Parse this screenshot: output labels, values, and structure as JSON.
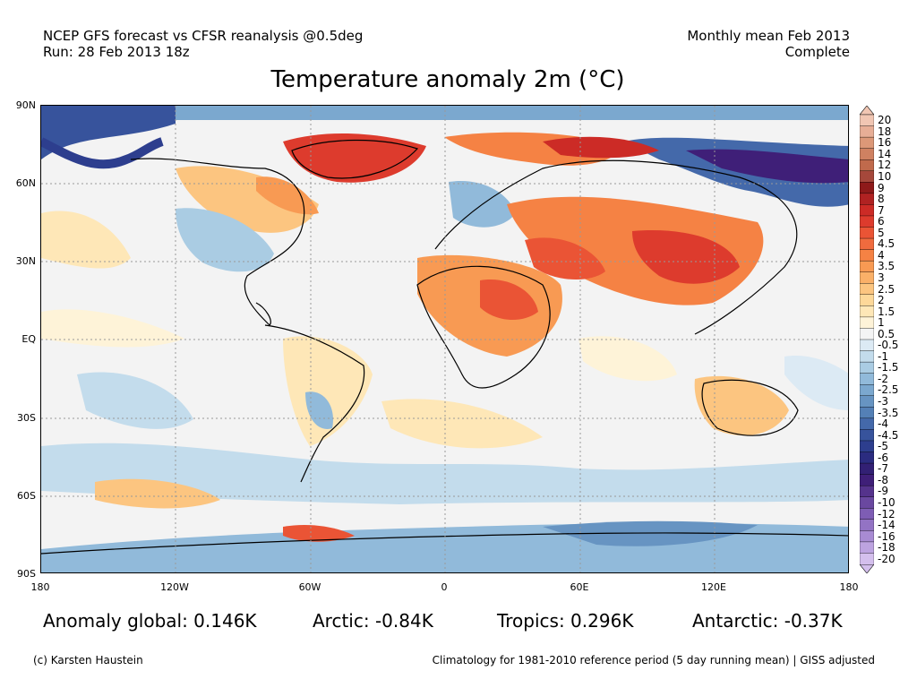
{
  "header": {
    "line1_left": "NCEP GFS forecast vs CFSR reanalysis @0.5deg",
    "line2_left": "Run: 28 Feb 2013 18z",
    "line1_right": "Monthly mean Feb 2013",
    "line2_right": "Complete"
  },
  "title": "Temperature anomaly 2m (°C)",
  "map": {
    "lat_labels": [
      "90N",
      "60N",
      "30N",
      "EQ",
      "30S",
      "60S",
      "90S"
    ],
    "lon_labels": [
      "180",
      "120W",
      "60W",
      "0",
      "60E",
      "120E",
      "180"
    ]
  },
  "colorbar": {
    "labels": [
      "20",
      "18",
      "16",
      "14",
      "12",
      "10",
      "9",
      "8",
      "7",
      "6",
      "5",
      "4.5",
      "4",
      "3.5",
      "3",
      "2.5",
      "2",
      "1.5",
      "1",
      "0.5",
      "-0.5",
      "-1",
      "-1.5",
      "-2",
      "-2.5",
      "-3",
      "-3.5",
      "-4",
      "-4.5",
      "-5",
      "-6",
      "-7",
      "-8",
      "-9",
      "-10",
      "-12",
      "-14",
      "-16",
      "-18",
      "-20"
    ],
    "colors": [
      "#f1c6b3",
      "#e7ae96",
      "#dc9878",
      "#cf8161",
      "#c06a4c",
      "#a5483b",
      "#8e1a1a",
      "#b02222",
      "#cc2b26",
      "#dd3b2d",
      "#ea5435",
      "#f06b3e",
      "#f58244",
      "#f89a53",
      "#fab068",
      "#fcc580",
      "#fdd899",
      "#fee7b7",
      "#fef3d8",
      "#f4f4f4",
      "#dceaf4",
      "#c3dcec",
      "#aaccE3",
      "#91bada",
      "#7ba8cf",
      "#6794c2",
      "#5480b6",
      "#4469aa",
      "#37539c",
      "#2d3e8e",
      "#2b2c80",
      "#322074",
      "#3f1f78",
      "#55338c",
      "#6a48a0",
      "#7e5db4",
      "#9373c4",
      "#a88bd3",
      "#bda3e0",
      "#d4bfed"
    ]
  },
  "stats": {
    "global": "Anomaly global: 0.146K",
    "arctic": "Arctic: -0.84K",
    "tropics": "Tropics: 0.296K",
    "antarctic": "Antarctic: -0.37K"
  },
  "footer": {
    "left": "(c) Karsten Haustein",
    "right": "Climatology for 1981-2010 reference period (5 day running mean) | GISS adjusted"
  }
}
